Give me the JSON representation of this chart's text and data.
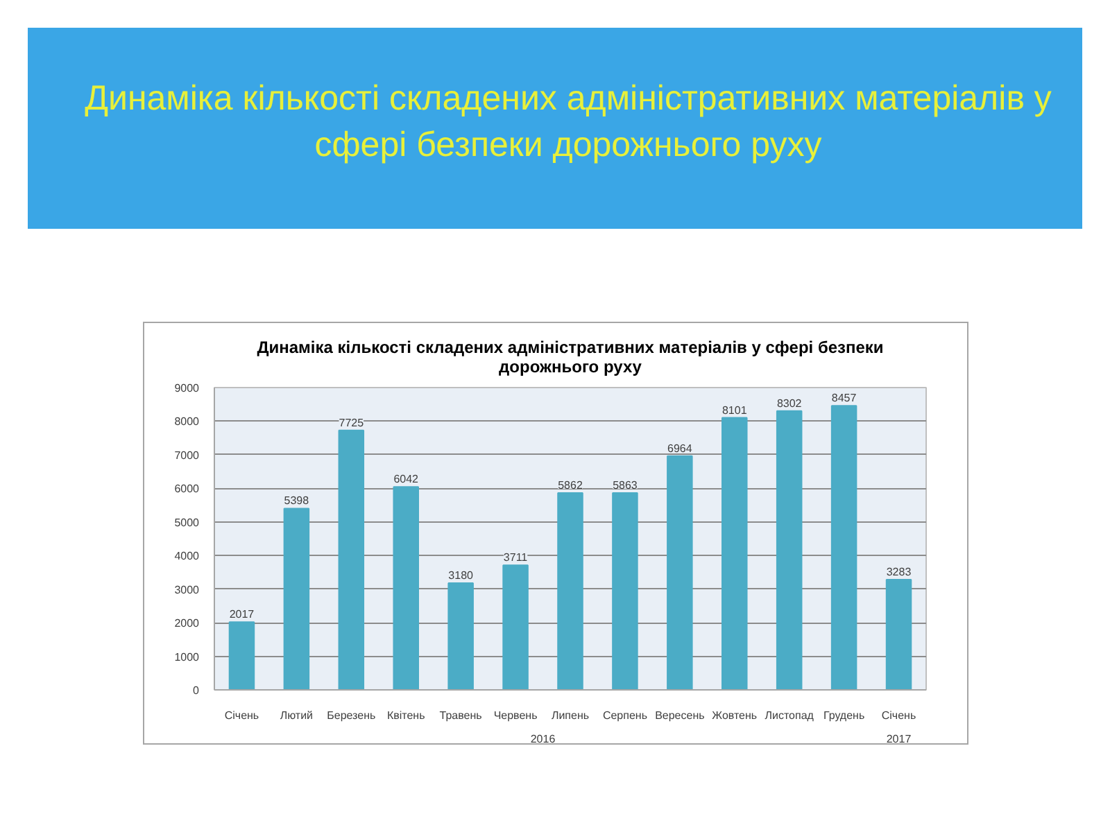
{
  "chart_data": {
    "type": "bar",
    "title": "Динаміка кількості складених адміністративних матеріалів у сфері безпеки дорожнього руху",
    "subtitle": "Динаміка кількості складених адміністративних матеріалів у сфері безпеки дорожнього руху",
    "categories": [
      "Січень",
      "Лютий",
      "Березень",
      "Квітень",
      "Травень",
      "Червень",
      "Липень",
      "Серпень",
      "Вересень",
      "Жовтень",
      "Листопад",
      "Грудень",
      "Січень"
    ],
    "values": [
      2017,
      5398,
      7725,
      6042,
      3180,
      3711,
      5862,
      5863,
      6964,
      8101,
      8302,
      8457,
      3283
    ],
    "color": "#4bacc6",
    "ylim": [
      0,
      9000
    ],
    "yticks": [
      0,
      1000,
      2000,
      3000,
      4000,
      5000,
      6000,
      7000,
      8000,
      9000
    ],
    "grid": "y",
    "data_labels": true,
    "annotations": [
      "2016",
      "2017"
    ]
  }
}
